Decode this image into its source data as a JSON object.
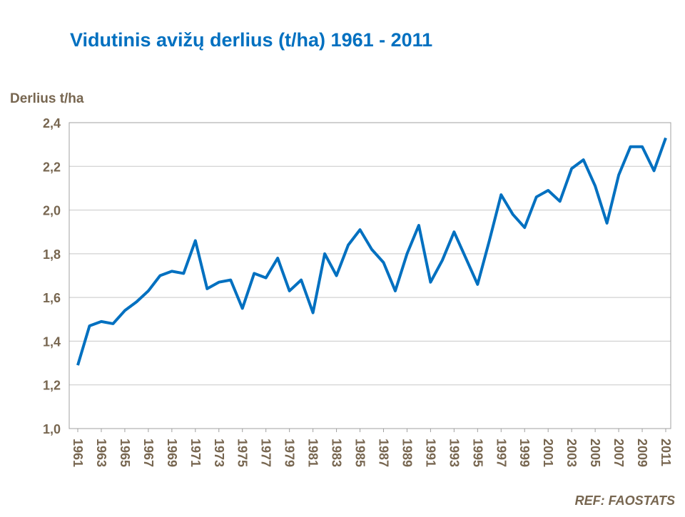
{
  "chart_data": {
    "type": "line",
    "title": "Vidutinis avižų derlius (t/ha) 1961 - 2011",
    "y_label": "Derlius t/ha",
    "annotation": "REF: FAOSTATS",
    "x": [
      1961,
      1962,
      1963,
      1964,
      1965,
      1966,
      1967,
      1968,
      1969,
      1970,
      1971,
      1972,
      1973,
      1974,
      1975,
      1976,
      1977,
      1978,
      1979,
      1980,
      1981,
      1982,
      1983,
      1984,
      1985,
      1986,
      1987,
      1988,
      1989,
      1990,
      1991,
      1992,
      1993,
      1994,
      1995,
      1996,
      1997,
      1998,
      1999,
      2000,
      2001,
      2002,
      2003,
      2004,
      2005,
      2006,
      2007,
      2008,
      2009,
      2010,
      2011
    ],
    "series": [
      {
        "color": "#0070c0",
        "values": [
          1.29,
          1.47,
          1.49,
          1.48,
          1.54,
          1.58,
          1.63,
          1.7,
          1.72,
          1.71,
          1.86,
          1.64,
          1.67,
          1.68,
          1.55,
          1.71,
          1.69,
          1.78,
          1.63,
          1.68,
          1.53,
          1.8,
          1.7,
          1.84,
          1.91,
          1.82,
          1.76,
          1.63,
          1.8,
          1.93,
          1.67,
          1.77,
          1.9,
          1.78,
          1.66,
          1.86,
          2.07,
          1.98,
          1.92,
          2.06,
          2.09,
          2.04,
          2.19,
          2.23,
          2.11,
          1.94,
          2.16,
          2.29,
          2.29,
          2.18,
          2.33
        ]
      }
    ],
    "xlim": [
      1961,
      2011
    ],
    "xticks": [
      1961,
      1963,
      1965,
      1967,
      1969,
      1971,
      1973,
      1975,
      1977,
      1979,
      1981,
      1983,
      1985,
      1987,
      1989,
      1991,
      1993,
      1995,
      1997,
      1999,
      2001,
      2003,
      2005,
      2007,
      2009,
      2011
    ],
    "ylim": [
      1.0,
      2.4
    ],
    "yticks": [
      {
        "value": 1.0,
        "label": "1,0"
      },
      {
        "value": 1.2,
        "label": "1,2"
      },
      {
        "value": 1.4,
        "label": "1,4"
      },
      {
        "value": 1.6,
        "label": "1,6"
      },
      {
        "value": 1.8,
        "label": "1,8"
      },
      {
        "value": 2.0,
        "label": "2,0"
      },
      {
        "value": 2.2,
        "label": "2,2"
      },
      {
        "value": 2.4,
        "label": "2,4"
      }
    ],
    "grid": true
  }
}
